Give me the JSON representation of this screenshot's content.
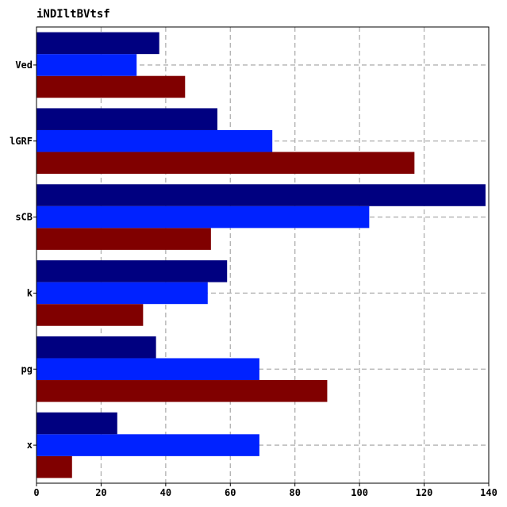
{
  "chart_data": {
    "type": "bar",
    "orientation": "horizontal",
    "title": "iNDIltBVtsf",
    "xlabel": "",
    "ylabel": "",
    "categories": [
      "x",
      "pg",
      "k",
      "sCB",
      "lGRF",
      "Ved"
    ],
    "series": [
      {
        "color": "#800000",
        "values": [
          11,
          90,
          33,
          54,
          117,
          46
        ]
      },
      {
        "color": "#0022ff",
        "values": [
          69,
          69,
          53,
          103,
          73,
          31
        ]
      },
      {
        "color": "#000080",
        "values": [
          25,
          37,
          59,
          139,
          56,
          38
        ]
      }
    ],
    "xlim": [
      0,
      140
    ],
    "xticks": [
      "0",
      "20",
      "40",
      "60",
      "80",
      "100",
      "120",
      "140"
    ],
    "grid": true,
    "legend": "none"
  }
}
